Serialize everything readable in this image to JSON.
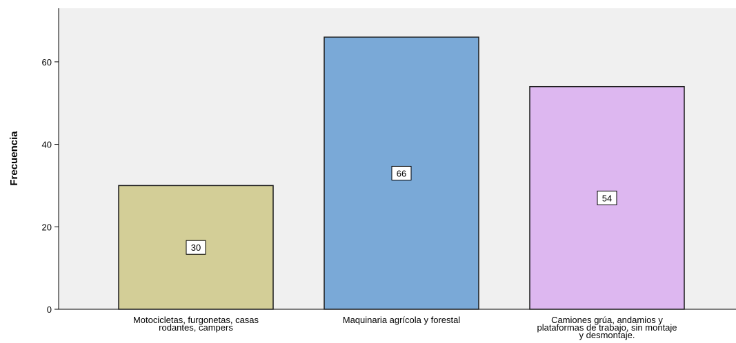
{
  "chart_data": {
    "type": "bar",
    "categories": [
      "Motocicletas, furgonetas, casas rodantes, campers",
      "Maquinaria agrícola y forestal",
      "Camiones grúa, andamios y plataformas de trabajo, sin montaje y desmontaje."
    ],
    "category_label_lines": [
      [
        "Motocicletas, furgonetas, casas",
        "rodantes, campers"
      ],
      [
        "Maquinaria agrícola y forestal"
      ],
      [
        "Camiones grúa, andamios y",
        "plataformas de trabajo, sin montaje",
        "y desmontaje."
      ]
    ],
    "values": [
      30,
      66,
      54
    ],
    "data_labels": [
      "30",
      "66",
      "54"
    ],
    "title": "",
    "xlabel": "",
    "ylabel": "Frecuencia",
    "ylim": [
      0,
      73
    ],
    "yticks": [
      0,
      20,
      40,
      60
    ],
    "ytick_labels": [
      "0",
      "20",
      "40",
      "60"
    ],
    "grid": false,
    "bar_colors": [
      "#d3ce97",
      "#7aa9d7",
      "#ddb7f0"
    ],
    "plot_background": "#f0f0f0",
    "bar_edge_color": "#1a1a1a"
  }
}
